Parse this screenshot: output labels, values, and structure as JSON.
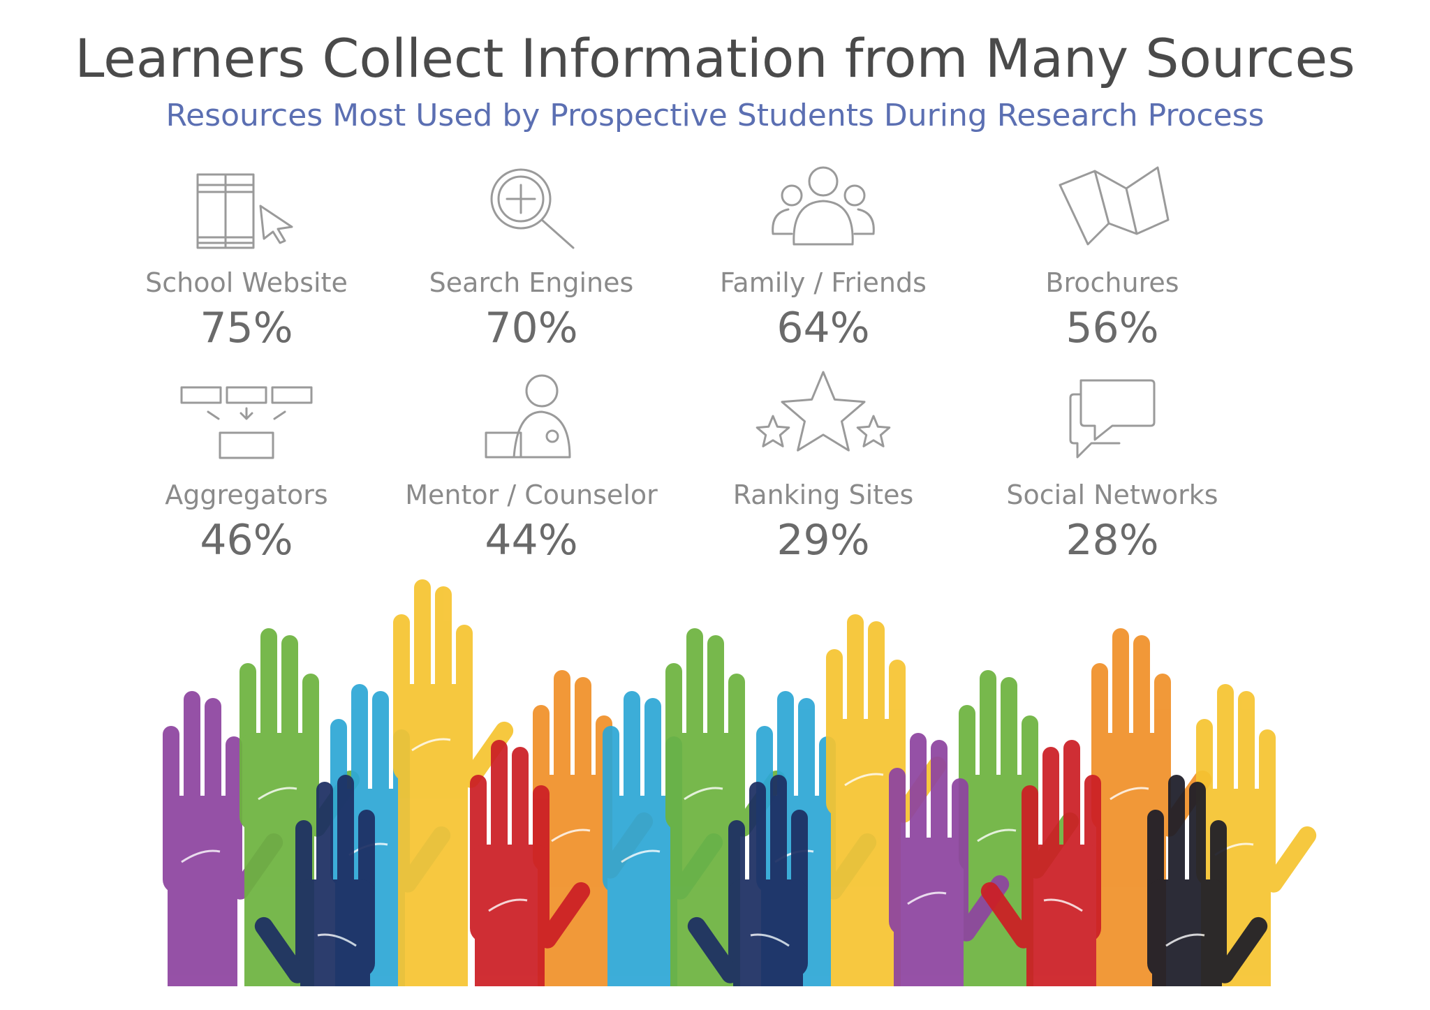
{
  "header": {
    "title": "Learners Collect Information from Many Sources",
    "subtitle": "Resources Most Used by Prospective Students During Research Process"
  },
  "items": [
    {
      "label": "School Website",
      "value": "75%"
    },
    {
      "label": "Search Engines",
      "value": "70%"
    },
    {
      "label": "Family / Friends",
      "value": "64%"
    },
    {
      "label": "Brochures",
      "value": "56%"
    },
    {
      "label": "Aggregators",
      "value": "46%"
    },
    {
      "label": "Mentor / Counselor",
      "value": "44%"
    },
    {
      "label": "Ranking Sites",
      "value": "29%"
    },
    {
      "label": "Social Networks",
      "value": "28%"
    }
  ]
}
